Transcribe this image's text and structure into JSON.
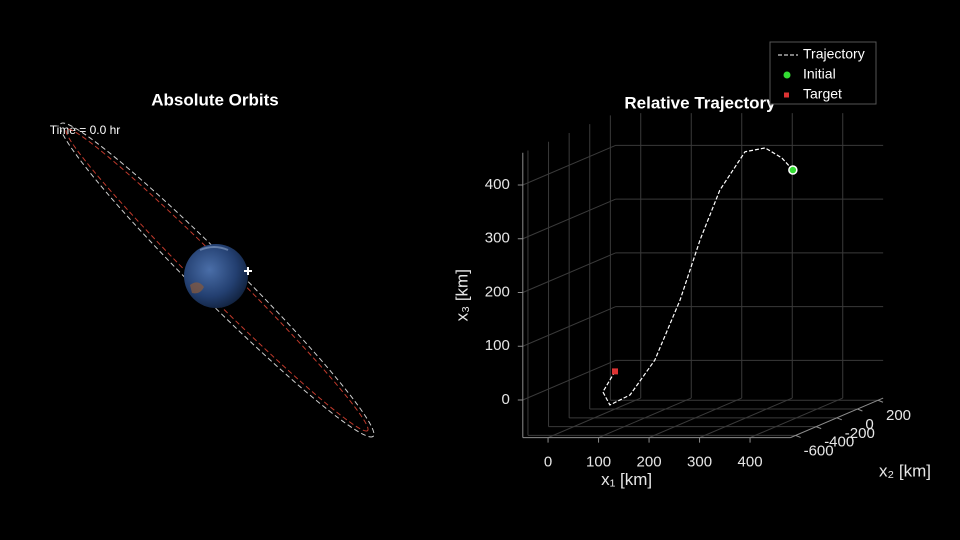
{
  "chart_data": [
    {
      "type": "orbit",
      "title": "Absolute Orbits",
      "annotation": "Time = 0.0 hr"
    },
    {
      "type": "line3d",
      "title": "Relative Trajectory",
      "xlabel": "x₁ [km]",
      "ylabel": "x₂ [km]",
      "zlabel": "x₃ [km]",
      "xlim": [
        -50,
        480
      ],
      "ylim": [
        -650,
        250
      ],
      "zlim": [
        -70,
        460
      ],
      "xticks": [
        0,
        100,
        200,
        300,
        400
      ],
      "yticks": [
        -600,
        -400,
        -200,
        0,
        200
      ],
      "zticks": [
        0,
        100,
        200,
        300,
        400
      ],
      "grid": true,
      "legend": "upper right",
      "series": [
        {
          "name": "Trajectory",
          "color": "#ffffff",
          "x": [
            0,
            -21,
            -4,
            39,
            91,
            145,
            189,
            232,
            286,
            330,
            367,
            393
          ],
          "y": [
            0,
            -15,
            -30,
            -45,
            -60,
            -80,
            -100,
            -120,
            -140,
            -160,
            -180,
            -200
          ],
          "z": [
            0,
            -37,
            -60,
            -40,
            26,
            139,
            253,
            347,
            420,
            429,
            412,
            391
          ]
        },
        {
          "name": "Initial",
          "color": "#33dd33",
          "x": [
            393
          ],
          "y": [
            -200
          ],
          "z": [
            391
          ]
        },
        {
          "name": "Target",
          "color": "#dd3333",
          "x": [
            0
          ],
          "y": [
            0
          ],
          "z": [
            0
          ]
        }
      ]
    }
  ]
}
